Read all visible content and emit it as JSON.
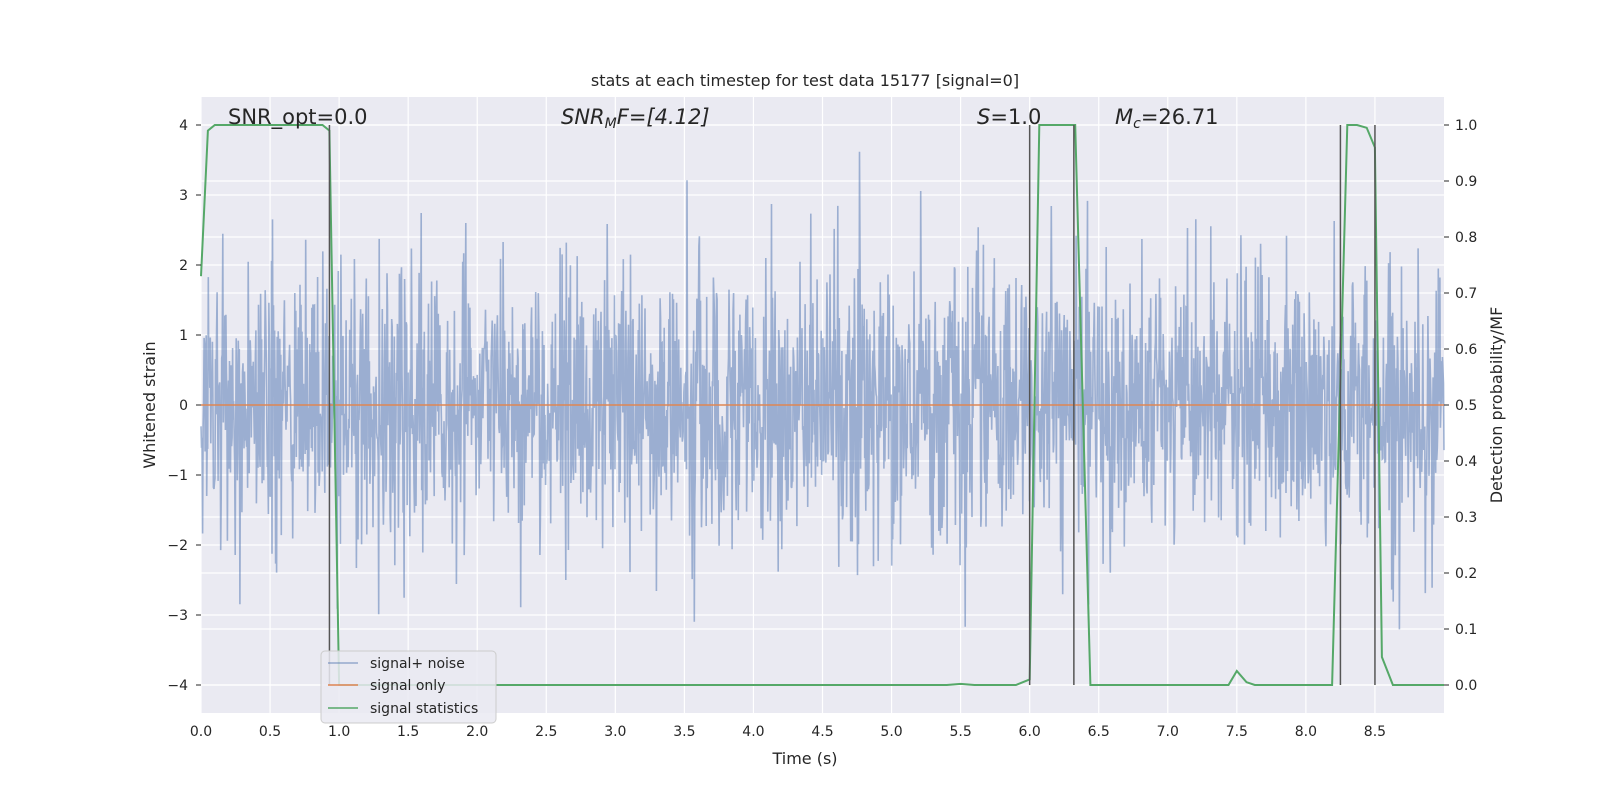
{
  "chart_data": {
    "type": "line",
    "title": "stats at each timestep for test data 15177 [signal=0]",
    "xlabel": "Time (s)",
    "ylabel": "Whitened strain",
    "ylabel_right": "Detection probability/MF",
    "xlim": [
      0.0,
      9.0
    ],
    "ylim": [
      -4.4,
      4.4
    ],
    "ylim_right": [
      -0.05,
      1.05
    ],
    "x_ticks": [
      "0.0",
      "0.5",
      "1.0",
      "1.5",
      "2.0",
      "2.5",
      "3.0",
      "3.5",
      "4.0",
      "4.5",
      "5.0",
      "5.5",
      "6.0",
      "6.5",
      "7.0",
      "7.5",
      "8.0",
      "8.5"
    ],
    "y_ticks": [
      "4",
      "3",
      "2",
      "1",
      "0",
      "−1",
      "−2",
      "−3",
      "−4"
    ],
    "y_ticks_right": [
      "1.0",
      "0.9",
      "0.8",
      "0.7",
      "0.6",
      "0.5",
      "0.4",
      "0.3",
      "0.2",
      "0.1",
      "0.0"
    ],
    "grid": true,
    "legend_position": "lower-left",
    "annotations": {
      "snr_opt": "SNR_opt=0.0",
      "snr_mf_italic": "SNR",
      "snr_mf_sub": "M",
      "snr_mf_rest": "F=[4.12]",
      "s_italic": "S",
      "s_rest": "=1.0",
      "mc_italic": "M",
      "mc_sub": "c",
      "mc_rest": "=26.71"
    },
    "series": [
      {
        "name": "signal+ noise",
        "color": "#4c72b0",
        "axis": "left",
        "description_values": "noise trace, roughly +/-2 sigma, spikes up to 4"
      },
      {
        "name": "signal only",
        "color": "#dd8452",
        "axis": "left",
        "x": [
          0.0,
          9.0
        ],
        "y": [
          0.0,
          0.0
        ]
      },
      {
        "name": "signal statistics",
        "color": "#55a868",
        "axis": "right",
        "x": [
          0.0,
          0.05,
          0.1,
          0.2,
          0.5,
          0.8,
          0.88,
          0.93,
          1.0,
          1.5,
          2.0,
          3.0,
          4.0,
          5.0,
          5.4,
          5.5,
          5.6,
          5.9,
          6.0,
          6.07,
          6.3,
          6.33,
          6.44,
          7.0,
          7.44,
          7.5,
          7.57,
          7.63,
          8.0,
          8.19,
          8.3,
          8.37,
          8.44,
          8.5,
          8.55,
          8.63,
          9.0
        ],
        "y": [
          0.73,
          0.99,
          1.0,
          1.0,
          1.0,
          1.0,
          1.0,
          0.99,
          0.0,
          0.0,
          0.0,
          0.0,
          0.0,
          0.0,
          0.0,
          0.002,
          0.0,
          0.0,
          0.01,
          1.0,
          1.0,
          1.0,
          0.0,
          0.0,
          0.0,
          0.025,
          0.005,
          0.0,
          0.0,
          0.0,
          1.0,
          1.0,
          0.995,
          0.96,
          0.05,
          0.0,
          0.0
        ]
      }
    ],
    "vertical_lines_x": [
      0.93,
      6.0,
      6.32,
      8.25,
      8.5
    ],
    "colors": {
      "background": "#eaeaf2",
      "grid": "#ffffff",
      "vline": "#555555"
    }
  }
}
